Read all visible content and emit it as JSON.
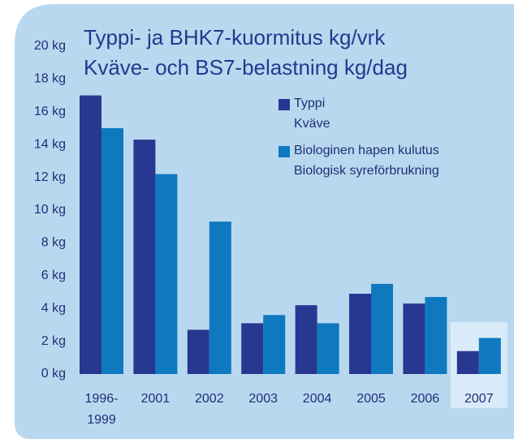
{
  "chart_data": {
    "type": "bar",
    "title": "Typpi- ja BHK7-kuormitus kg/vrk",
    "subtitle": "Kväve- och BS7-belastning kg/dag",
    "categories": [
      "1996-\n1999",
      "2001",
      "2002",
      "2003",
      "2004",
      "2005",
      "2006",
      "2007"
    ],
    "series": [
      {
        "name": "Typpi",
        "name_alt": "Kväve",
        "color": "#283891",
        "values": [
          17.0,
          14.3,
          2.7,
          3.1,
          4.2,
          4.9,
          4.3,
          1.4
        ]
      },
      {
        "name": "Biologinen hapen kulutus",
        "name_alt": "Biologisk syreförbrukning",
        "color": "#0f79c0",
        "values": [
          15.0,
          12.2,
          9.3,
          3.6,
          3.1,
          5.5,
          4.7,
          2.2
        ]
      }
    ],
    "ylim": [
      0,
      20
    ],
    "yticks": [
      {
        "value": 0,
        "label": "0 kg"
      },
      {
        "value": 2,
        "label": "2 kg"
      },
      {
        "value": 4,
        "label": "4 kg"
      },
      {
        "value": 6,
        "label": "6 kg"
      },
      {
        "value": 8,
        "label": "8 kg"
      },
      {
        "value": 10,
        "label": "10 kg"
      },
      {
        "value": 12,
        "label": "12 kg"
      },
      {
        "value": 14,
        "label": "14 kg"
      },
      {
        "value": 16,
        "label": "16 kg"
      },
      {
        "value": 18,
        "label": "18 kg"
      },
      {
        "value": 20,
        "label": "20 kg"
      }
    ],
    "grid": false,
    "legend": "top-right",
    "highlight": "2007"
  }
}
